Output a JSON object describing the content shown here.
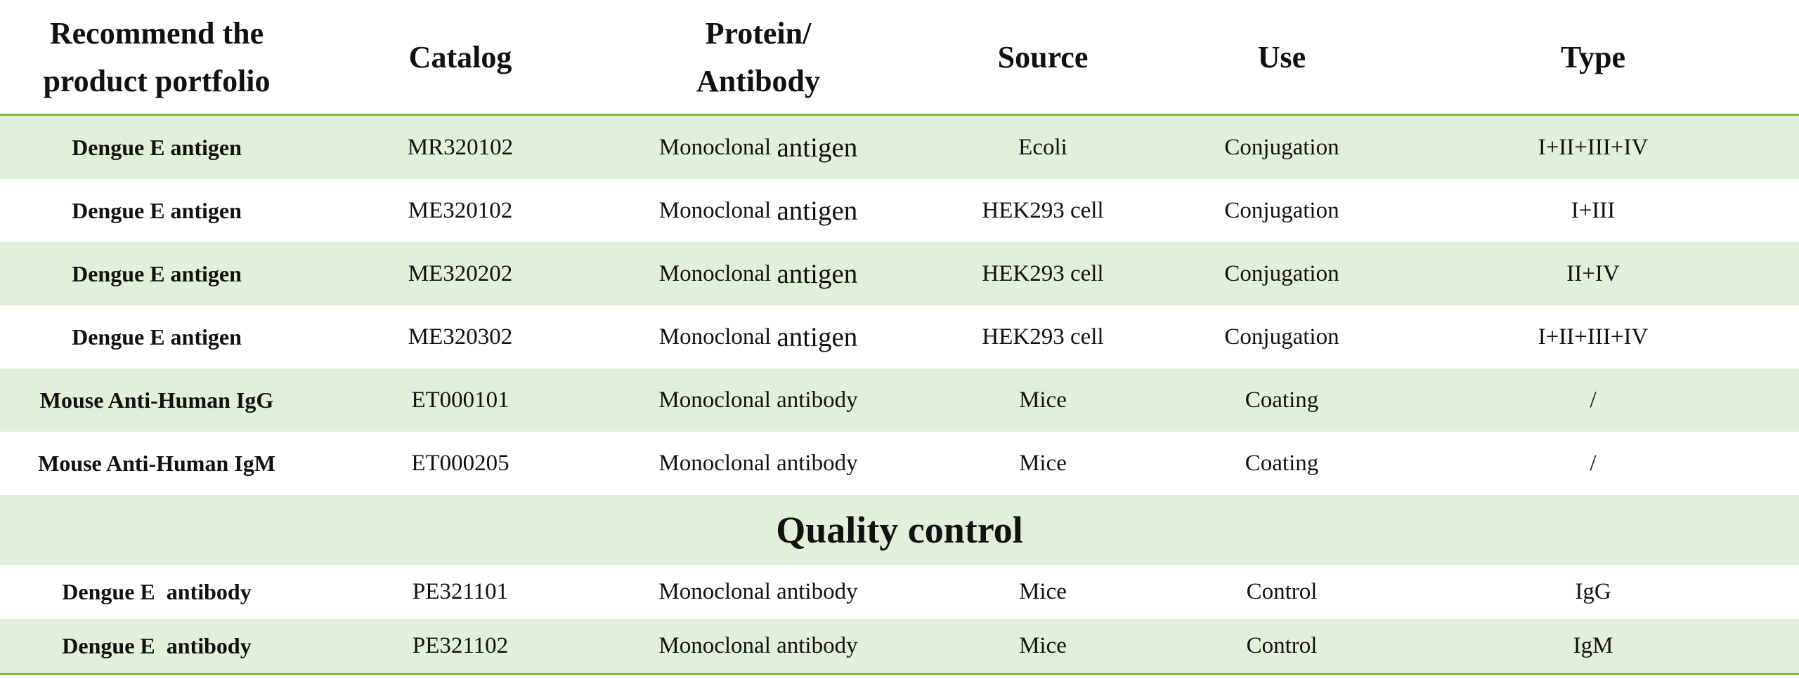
{
  "header": {
    "col1_line1": "Recommend the",
    "col1_line2": "product portfolio",
    "col2": "Catalog",
    "col3_line1": "Protein/",
    "col3_line2": "Antibody",
    "col4": "Source",
    "col5": "Use",
    "col6": "Type"
  },
  "rows": [
    {
      "product": "Dengue E antigen",
      "catalog": "MR320102",
      "protein_a": "Monoclonal",
      "protein_b": "antigen",
      "source": "Ecoli",
      "use": "Conjugation",
      "type": "I+II+III+IV"
    },
    {
      "product": "Dengue E antigen",
      "catalog": "ME320102",
      "protein_a": "Monoclonal",
      "protein_b": "antigen",
      "source": "HEK293 cell",
      "use": "Conjugation",
      "type": "I+III"
    },
    {
      "product": "Dengue E antigen",
      "catalog": "ME320202",
      "protein_a": "Monoclonal",
      "protein_b": "antigen",
      "source": "HEK293 cell",
      "use": "Conjugation",
      "type": "II+IV"
    },
    {
      "product": "Dengue E antigen",
      "catalog": "ME320302",
      "protein_a": "Monoclonal",
      "protein_b": "antigen",
      "source": "HEK293 cell",
      "use": "Conjugation",
      "type": "I+II+III+IV"
    },
    {
      "product": "Mouse Anti-Human IgG",
      "catalog": "ET000101",
      "protein": "Monoclonal antibody",
      "source": "Mice",
      "use": "Coating",
      "type": "/"
    },
    {
      "product": "Mouse Anti-Human IgM",
      "catalog": "ET000205",
      "protein": "Monoclonal antibody",
      "source": "Mice",
      "use": "Coating",
      "type": "/"
    }
  ],
  "section_title": "Quality control",
  "qc_rows": [
    {
      "product": "Dengue E  antibody",
      "catalog": "PE321101",
      "protein": "Monoclonal antibody",
      "source": "Mice",
      "use": "Control",
      "type": "IgG"
    },
    {
      "product": "Dengue E  antibody",
      "catalog": "PE321102",
      "protein": "Monoclonal antibody",
      "source": "Mice",
      "use": "Control",
      "type": "IgM"
    }
  ],
  "colors": {
    "accent_line": "#7ab648",
    "row_shade": "#e2efda"
  }
}
